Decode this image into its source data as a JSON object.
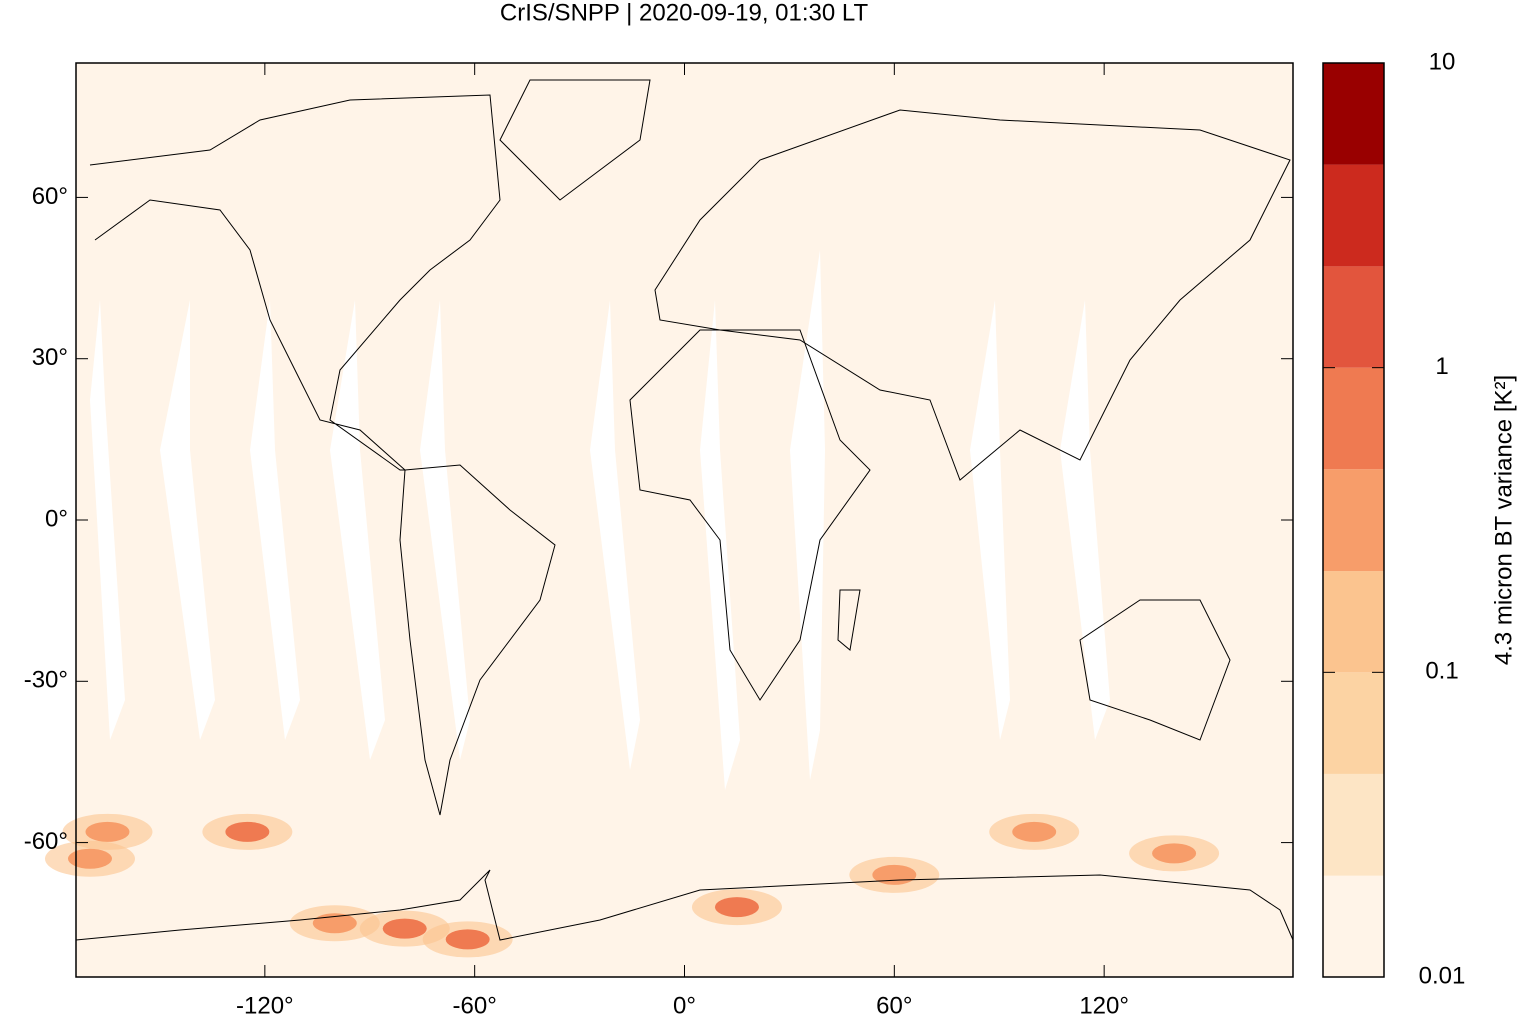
{
  "chart_data": {
    "type": "map",
    "title": "CrIS/SNPP | 2020-09-19, 01:30 LT",
    "xlim": [
      -174,
      174
    ],
    "ylim": [
      -85,
      85
    ],
    "xticks": [
      {
        "value": -120,
        "label": "-120°"
      },
      {
        "value": -60,
        "label": "-60°"
      },
      {
        "value": 0,
        "label": "0°"
      },
      {
        "value": 60,
        "label": "60°"
      },
      {
        "value": 120,
        "label": "120°"
      }
    ],
    "yticks": [
      {
        "value": -60,
        "label": "-60°"
      },
      {
        "value": -30,
        "label": "-30°"
      },
      {
        "value": 0,
        "label": "0°"
      },
      {
        "value": 30,
        "label": "30°"
      },
      {
        "value": 60,
        "label": "60°"
      }
    ],
    "colorbar": {
      "label": "4.3 micron BT variance [K²]",
      "log": true,
      "lim": [
        0.01,
        10
      ],
      "ticks": [
        0.01,
        0.1,
        1,
        10
      ],
      "levels": [
        0.01,
        0.0215,
        0.0464,
        0.1,
        0.215,
        0.464,
        1,
        2.15,
        4.64,
        10
      ],
      "colors": [
        "#fff4e8",
        "#fde5c5",
        "#fcd3a3",
        "#fbc48f",
        "#f79d6a",
        "#ef7a51",
        "#e2553d",
        "#cc2a1e",
        "#990000"
      ]
    },
    "hotspots": [
      {
        "lon": -165,
        "lat": -58,
        "value": 0.3
      },
      {
        "lon": -125,
        "lat": -58,
        "value": 0.5
      },
      {
        "lon": -170,
        "lat": -63,
        "value": 0.4
      },
      {
        "lon": -100,
        "lat": -75,
        "value": 0.4
      },
      {
        "lon": -80,
        "lat": -76,
        "value": 0.5
      },
      {
        "lon": -62,
        "lat": -78,
        "value": 0.5
      },
      {
        "lon": 15,
        "lat": -72,
        "value": 0.7
      },
      {
        "lon": 60,
        "lat": -66,
        "value": 0.4
      },
      {
        "lon": 100,
        "lat": -58,
        "value": 0.4
      },
      {
        "lon": 140,
        "lat": -62,
        "value": 0.3
      }
    ]
  }
}
